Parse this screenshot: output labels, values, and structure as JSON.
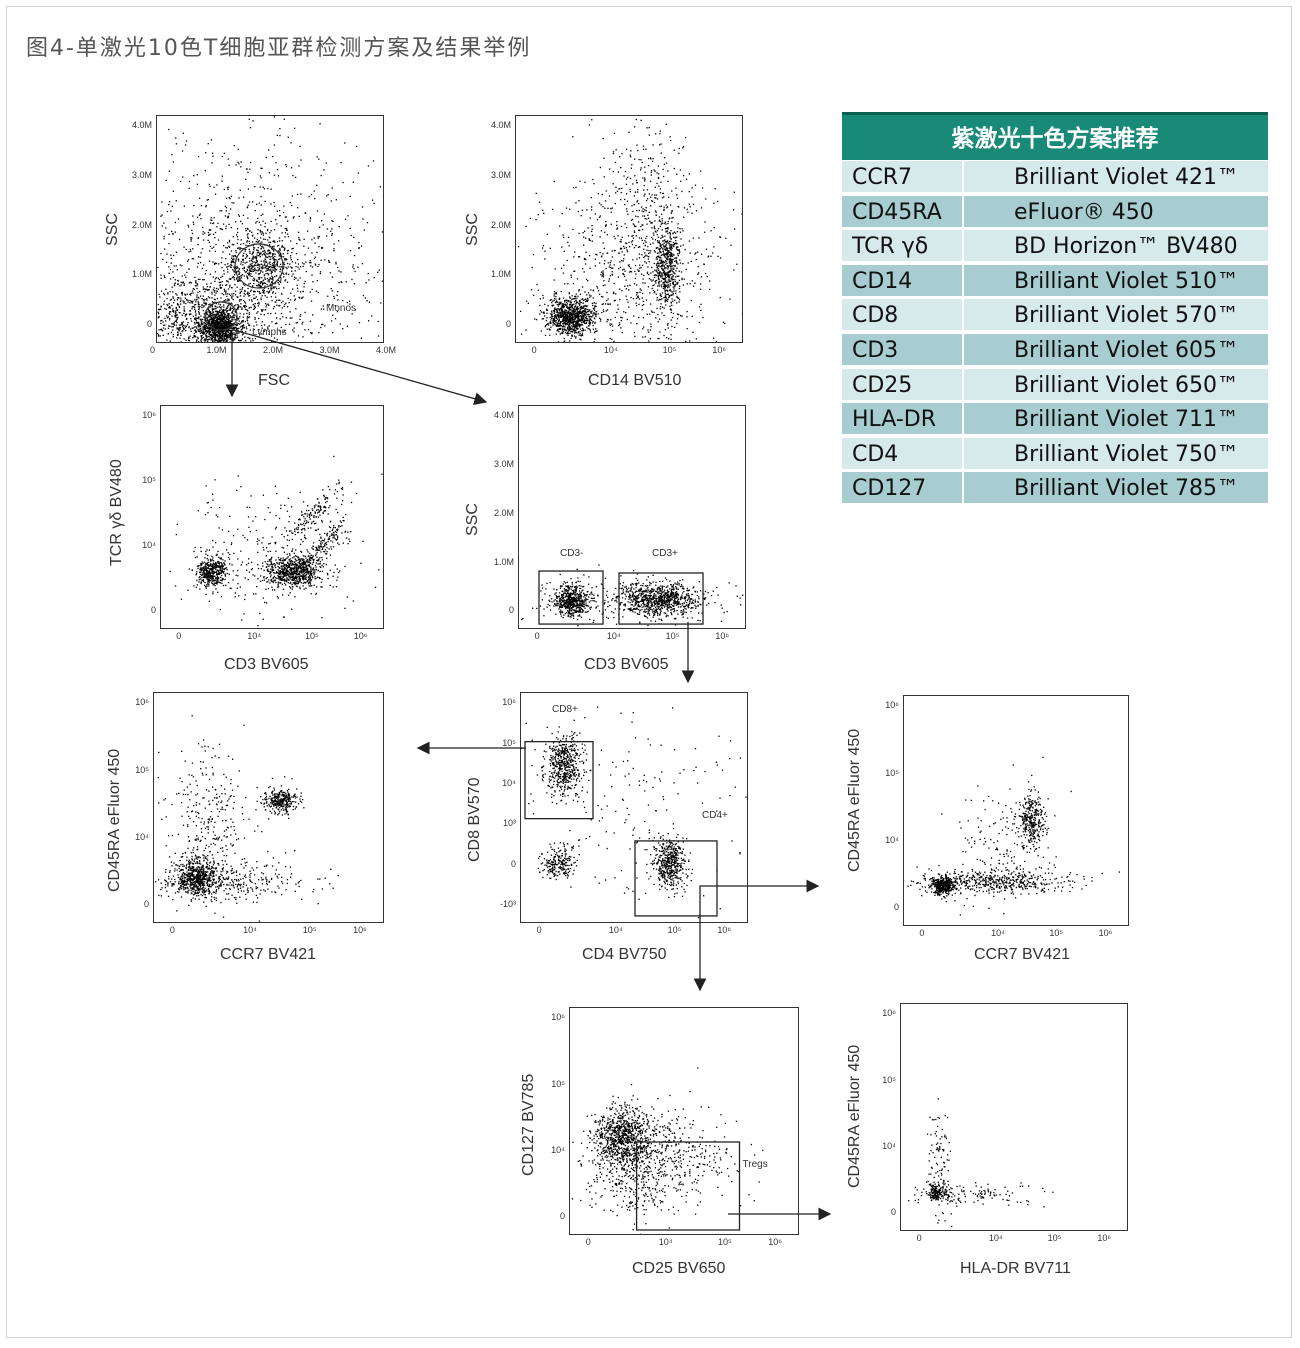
{
  "figure_title": "图4-单激光10色T细胞亚群检测方案及结果举例",
  "table": {
    "header": "紫激光十色方案推荐",
    "rows": [
      {
        "marker": "CCR7",
        "dye": "Brilliant Violet 421™"
      },
      {
        "marker": "CD45RA",
        "dye": "eFluor® 450"
      },
      {
        "marker": "TCR γδ",
        "dye": "BD Horizon™ BV480"
      },
      {
        "marker": "CD14",
        "dye": "Brilliant Violet 510™"
      },
      {
        "marker": "CD8",
        "dye": "Brilliant Violet 570™"
      },
      {
        "marker": "CD3",
        "dye": "Brilliant Violet 605™"
      },
      {
        "marker": "CD25",
        "dye": "Brilliant Violet 650™"
      },
      {
        "marker": "HLA-DR",
        "dye": "Brilliant Violet 711™"
      },
      {
        "marker": "CD4",
        "dye": "Brilliant Violet 750™"
      },
      {
        "marker": "CD127",
        "dye": "Brilliant Violet 785™"
      }
    ],
    "colors": {
      "header_bg": "#1a8a78",
      "row_dark": "#a8cdd0",
      "row_light": "#d6e9eb"
    }
  },
  "plots": {
    "p1": {
      "xlabel": "FSC",
      "ylabel": "SSC",
      "xticks": [
        "0",
        "1.0M",
        "2.0M",
        "3.0M",
        "4.0M"
      ],
      "yticks": [
        "4.0M",
        "3.0M",
        "2.0M",
        "1.0M",
        "0"
      ],
      "gates": [
        "Monos",
        "Lymphs"
      ]
    },
    "p2": {
      "xlabel": "CD14 BV510",
      "ylabel": "SSC",
      "xticks": [
        "0",
        "10⁴",
        "10⁵",
        "10⁶"
      ],
      "yticks": [
        "4.0M",
        "3.0M",
        "2.0M",
        "1.0M",
        "0"
      ]
    },
    "p3": {
      "xlabel": "CD3 BV605",
      "ylabel": "TCR γδ BV480",
      "xticks": [
        "0",
        "10⁴",
        "10⁵",
        "10⁶"
      ],
      "yticks": [
        "10⁶",
        "10⁵",
        "10⁴",
        "0"
      ]
    },
    "p4": {
      "xlabel": "CD3 BV605",
      "ylabel": "SSC",
      "xticks": [
        "0",
        "10⁴",
        "10⁵",
        "10⁶"
      ],
      "yticks": [
        "4.0M",
        "3.0M",
        "2.0M",
        "1.0M",
        "0"
      ],
      "gates": [
        "CD3-",
        "CD3+"
      ]
    },
    "p5": {
      "xlabel": "CCR7 BV421",
      "ylabel": "CD45RA eFluor 450",
      "xticks": [
        "0",
        "10⁴",
        "10⁵",
        "10⁶"
      ],
      "yticks": [
        "10⁶",
        "10⁵",
        "10⁴",
        "0"
      ]
    },
    "p6": {
      "xlabel": "CD4 BV750",
      "ylabel": "CD8 BV570",
      "xticks": [
        "0",
        "10⁴",
        "10⁵",
        "10⁶"
      ],
      "yticks": [
        "10⁶",
        "10⁵",
        "10⁴",
        "10³",
        "0",
        "-10³"
      ],
      "gates": [
        "CD8+",
        "CD4+"
      ]
    },
    "p7": {
      "xlabel": "CCR7 BV421",
      "ylabel": "CD45RA eFluor 450",
      "xticks": [
        "0",
        "10⁴",
        "10⁵",
        "10⁶"
      ],
      "yticks": [
        "10⁶",
        "10⁵",
        "10⁴",
        "0"
      ]
    },
    "p8": {
      "xlabel": "CD25 BV650",
      "ylabel": "CD127 BV785",
      "xticks": [
        "0",
        "10⁴",
        "10⁵",
        "10⁶"
      ],
      "yticks": [
        "10⁶",
        "10⁵",
        "10⁴",
        "0"
      ],
      "gates": [
        "Tregs"
      ]
    },
    "p9": {
      "xlabel": "HLA-DR BV711",
      "ylabel": "CD45RA eFluor 450",
      "xticks": [
        "0",
        "10⁴",
        "10⁵",
        "10⁶"
      ],
      "yticks": [
        "10⁶",
        "10⁵",
        "10⁴",
        "0"
      ]
    }
  }
}
